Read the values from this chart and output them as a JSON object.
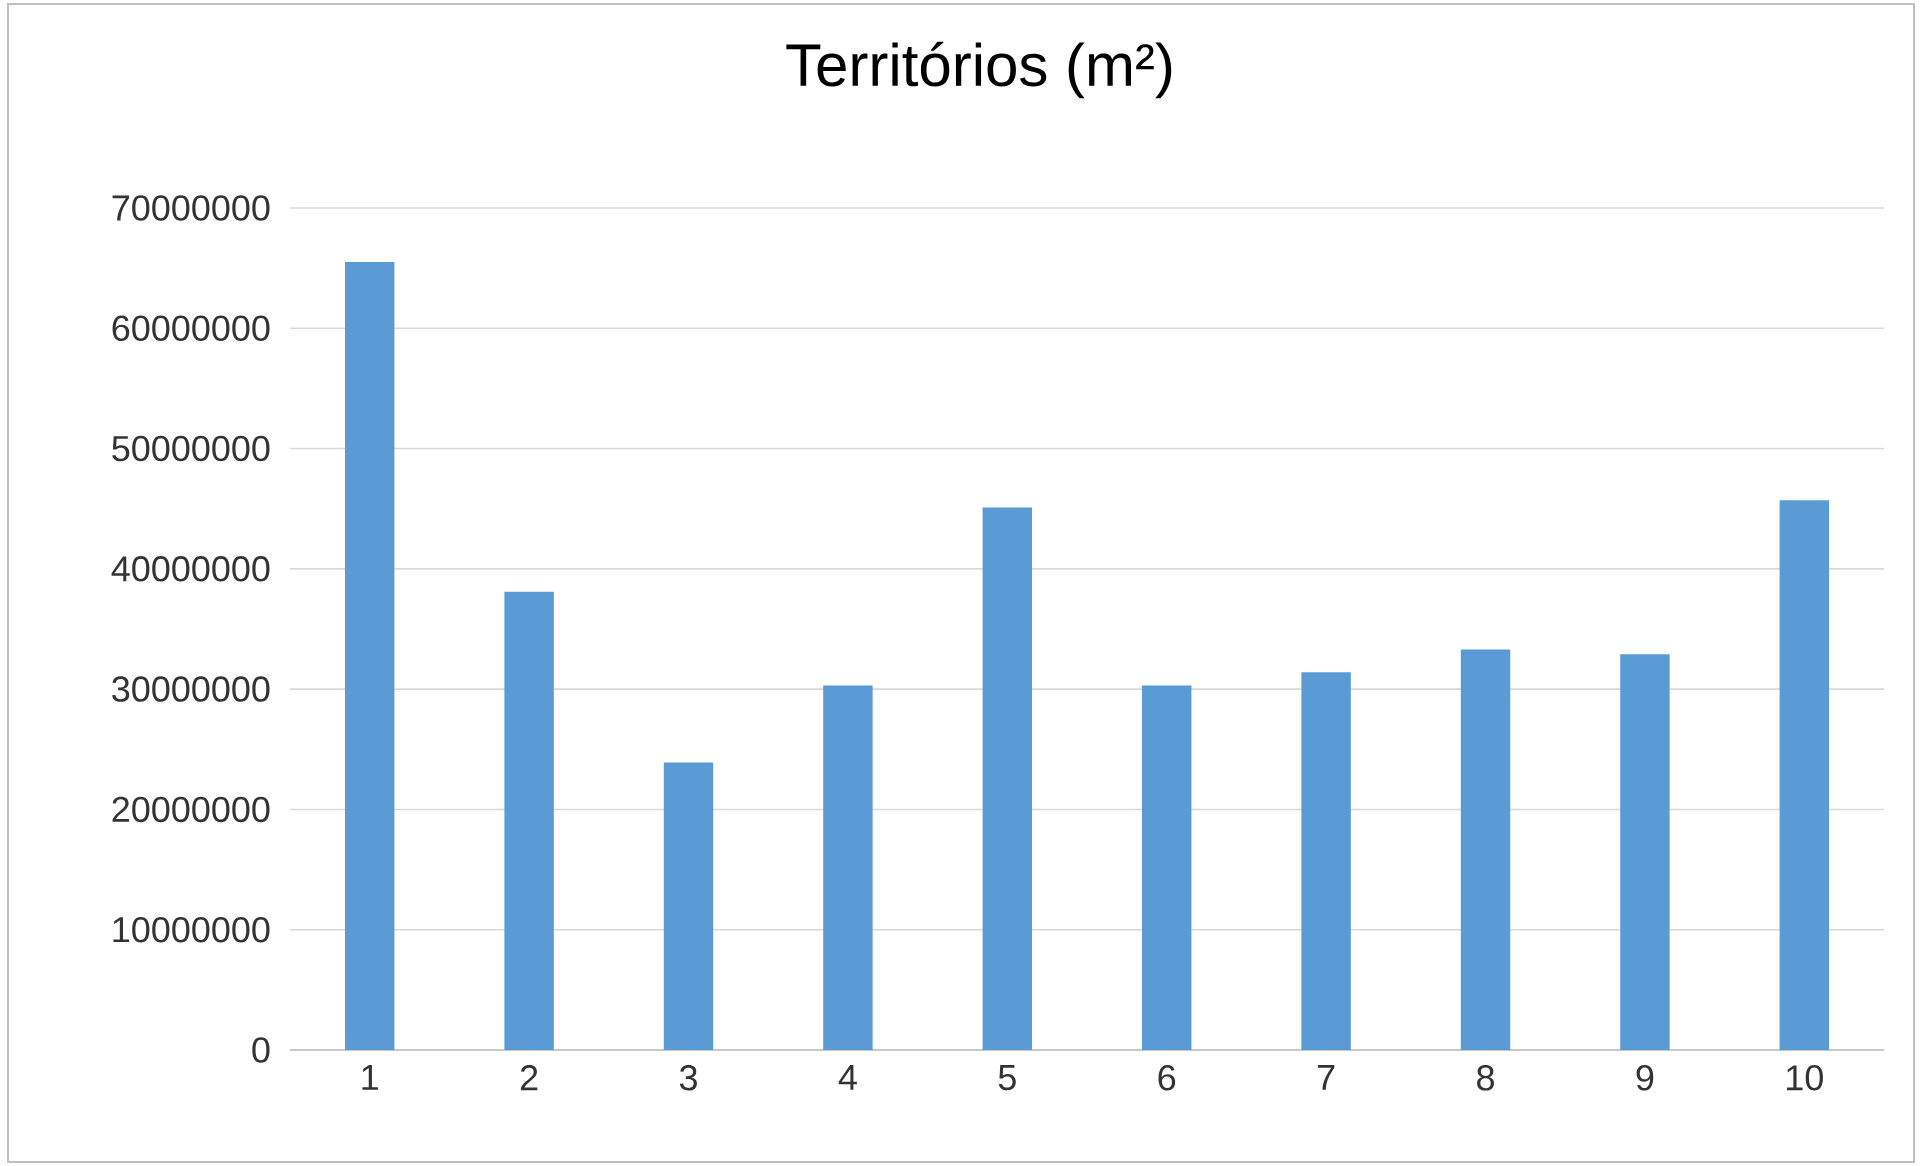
{
  "chart_data": {
    "type": "bar",
    "title": "Territórios (m²)",
    "categories": [
      "1",
      "2",
      "3",
      "4",
      "5",
      "6",
      "7",
      "8",
      "9",
      "10"
    ],
    "values": [
      65500000,
      38100000,
      23900000,
      30300000,
      45100000,
      30300000,
      31400000,
      33300000,
      32900000,
      45700000
    ],
    "color": "#5b9bd5",
    "ylim": [
      0,
      70000000
    ],
    "yticks": [
      0,
      10000000,
      20000000,
      30000000,
      40000000,
      50000000,
      60000000,
      70000000
    ],
    "grid": "y"
  }
}
